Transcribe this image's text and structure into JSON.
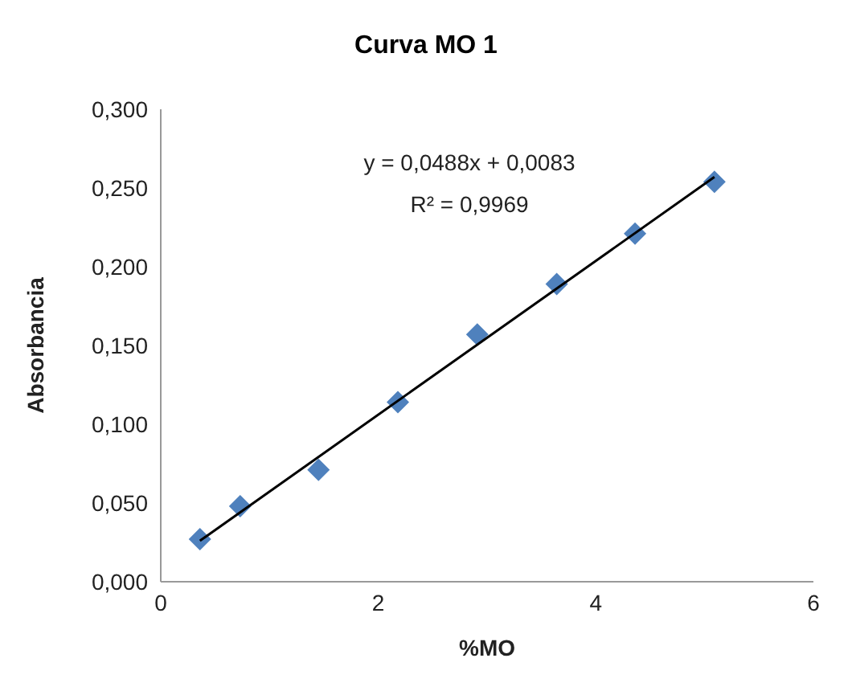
{
  "chart_data": {
    "type": "scatter",
    "title": "Curva MO 1",
    "xlabel": "%MO",
    "ylabel": "Absorbancia",
    "series": [
      {
        "color": "#4f81bd",
        "x": [
          0.36,
          0.73,
          1.45,
          2.18,
          2.91,
          3.64,
          4.36,
          5.09
        ],
        "values": [
          0.027,
          0.048,
          0.071,
          0.114,
          0.157,
          0.189,
          0.221,
          0.254
        ]
      },
      {
        "type": "line",
        "marker": "none",
        "color": "#000000",
        "x": [
          0.36,
          5.09
        ],
        "values": [
          0.026,
          0.257
        ]
      }
    ],
    "xlim": [
      0,
      6
    ],
    "xticks": [
      0,
      2,
      4,
      6
    ],
    "ylim": [
      0,
      0.3
    ],
    "yticks": [
      {
        "value": 0,
        "label": "0,000"
      },
      {
        "value": 0.05,
        "label": "0,050"
      },
      {
        "value": 0.1,
        "label": "0,100"
      },
      {
        "value": 0.15,
        "label": "0,150"
      },
      {
        "value": 0.2,
        "label": "0,200"
      },
      {
        "value": 0.25,
        "label": "0,250"
      },
      {
        "value": 0.3,
        "label": "0,300"
      }
    ],
    "annotations": [
      "y = 0,0488x + 0,0083",
      "R² = 0,9969"
    ],
    "marker": "diamond",
    "grid": false,
    "legend": false
  }
}
